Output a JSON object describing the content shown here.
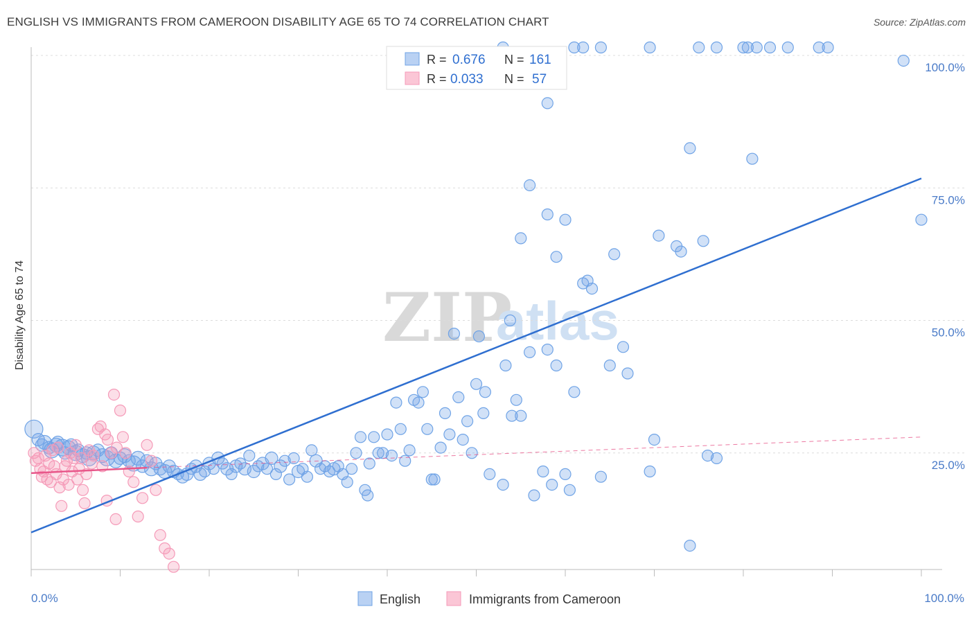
{
  "header": {
    "title": "ENGLISH VS IMMIGRANTS FROM CAMEROON DISABILITY AGE 65 TO 74 CORRELATION CHART",
    "source": "Source: ZipAtlas.com"
  },
  "watermark": {
    "zip": "ZIP",
    "atlas": "atlas"
  },
  "chart_data": {
    "type": "scatter",
    "ylabel": "Disability Age 65 to 74",
    "x_ticks": {
      "min_label": "0.0%",
      "max_label": "100.0%"
    },
    "y_ticks": [
      "100.0%",
      "75.0%",
      "50.0%",
      "25.0%"
    ],
    "xlim": [
      0,
      100
    ],
    "ylim": [
      0,
      103
    ],
    "grid": "horizontal-dashed",
    "legend_position": "top-center",
    "colors": {
      "english": "#6fa3e6",
      "english_line": "#2f6fd0",
      "cameroon": "#f59ab8",
      "cameroon_line": "#e8578a"
    },
    "stats": [
      {
        "r_label": "R =",
        "r": "0.676",
        "n_label": "N =",
        "n": "161"
      },
      {
        "r_label": "R =",
        "r": "0.033",
        "n_label": "N =",
        "n": "57"
      }
    ],
    "series": [
      {
        "name": "English",
        "trend": {
          "x": [
            0,
            100
          ],
          "y": [
            10.0,
            76.8
          ]
        },
        "points": [
          [
            0.3,
            29.5,
            13
          ],
          [
            0.8,
            27.5,
            9
          ],
          [
            1.2,
            26.5,
            9
          ],
          [
            1.5,
            27.0,
            10
          ],
          [
            2.0,
            26.0,
            9
          ],
          [
            2.3,
            25.5,
            11
          ],
          [
            2.8,
            26.5,
            10
          ],
          [
            3.0,
            27.0,
            9
          ],
          [
            3.5,
            26.0,
            12
          ],
          [
            3.8,
            25.0,
            9
          ],
          [
            4.2,
            26.0,
            10
          ],
          [
            4.5,
            26.5,
            9
          ],
          [
            5.0,
            25.0,
            11
          ],
          [
            5.3,
            25.5,
            9
          ],
          [
            5.8,
            24.5,
            10
          ],
          [
            6.2,
            25.0,
            9
          ],
          [
            6.5,
            24.0,
            11
          ],
          [
            7.0,
            25.0,
            10
          ],
          [
            7.5,
            25.5,
            9
          ],
          [
            8.0,
            24.5,
            10
          ],
          [
            8.5,
            24.0,
            11
          ],
          [
            9.0,
            25.0,
            9
          ],
          [
            9.5,
            23.5,
            10
          ],
          [
            10.0,
            24.0,
            9
          ],
          [
            10.5,
            24.5,
            10
          ],
          [
            11.0,
            23.5,
            9
          ],
          [
            11.5,
            23.0,
            11
          ],
          [
            12.0,
            24.0,
            10
          ],
          [
            12.5,
            22.5,
            9
          ],
          [
            13.0,
            23.5,
            9
          ],
          [
            13.5,
            22.0,
            10
          ],
          [
            14.0,
            23.0,
            9
          ],
          [
            14.5,
            22.0,
            9
          ],
          [
            15.0,
            21.5,
            10
          ],
          [
            15.5,
            22.5,
            9
          ],
          [
            16.0,
            21.5,
            9
          ],
          [
            16.5,
            21.0,
            8
          ],
          [
            17.0,
            20.5,
            9
          ],
          [
            17.5,
            21.0,
            9
          ],
          [
            18.0,
            22.0,
            8
          ],
          [
            18.5,
            22.5,
            9
          ],
          [
            19.0,
            21.0,
            9
          ],
          [
            19.5,
            21.5,
            8
          ],
          [
            20.0,
            23.0,
            9
          ],
          [
            20.5,
            22.0,
            8
          ],
          [
            21.0,
            24.0,
            9
          ],
          [
            21.5,
            23.0,
            8
          ],
          [
            22.0,
            22.0,
            9
          ],
          [
            22.5,
            21.0,
            8
          ],
          [
            23.0,
            22.5,
            9
          ],
          [
            23.5,
            23.0,
            8
          ],
          [
            24.0,
            22.0,
            9
          ],
          [
            24.5,
            24.5,
            8
          ],
          [
            25.0,
            21.5,
            9
          ],
          [
            25.5,
            22.5,
            8
          ],
          [
            26.0,
            23.0,
            9
          ],
          [
            26.5,
            22.0,
            8
          ],
          [
            27.0,
            24.0,
            9
          ],
          [
            27.5,
            21.0,
            8
          ],
          [
            28.0,
            22.5,
            9
          ],
          [
            28.5,
            23.5,
            8
          ],
          [
            29.0,
            20.0,
            8
          ],
          [
            29.5,
            24.0,
            8
          ],
          [
            30.0,
            21.5,
            9
          ],
          [
            30.5,
            22.0,
            8
          ],
          [
            31.0,
            20.5,
            8
          ],
          [
            31.5,
            25.5,
            8
          ],
          [
            32.0,
            23.5,
            9
          ],
          [
            32.5,
            22.0,
            8
          ],
          [
            33.0,
            22.5,
            8
          ],
          [
            33.5,
            21.5,
            8
          ],
          [
            34.0,
            22.0,
            9
          ],
          [
            34.5,
            22.5,
            8
          ],
          [
            35.0,
            21.0,
            8
          ],
          [
            35.5,
            19.5,
            8
          ],
          [
            36.0,
            22.0,
            8
          ],
          [
            36.5,
            25.0,
            8
          ],
          [
            37.0,
            28.0,
            8
          ],
          [
            37.5,
            18.0,
            8
          ],
          [
            37.8,
            17.0,
            8
          ],
          [
            38.0,
            23.0,
            8
          ],
          [
            38.5,
            28.0,
            8
          ],
          [
            39.0,
            25.0,
            8
          ],
          [
            39.5,
            25.0,
            8
          ],
          [
            40.0,
            28.5,
            8
          ],
          [
            40.5,
            24.5,
            8
          ],
          [
            41.0,
            34.5,
            8
          ],
          [
            41.5,
            29.5,
            8
          ],
          [
            42.0,
            23.5,
            8
          ],
          [
            42.5,
            25.5,
            8
          ],
          [
            43.0,
            35.0,
            8
          ],
          [
            43.5,
            34.5,
            8
          ],
          [
            44.0,
            36.5,
            8
          ],
          [
            44.5,
            29.5,
            8
          ],
          [
            45.0,
            20.0,
            8
          ],
          [
            45.3,
            20.0,
            8
          ],
          [
            46.0,
            26.0,
            8
          ],
          [
            46.5,
            32.5,
            8
          ],
          [
            47.0,
            28.5,
            8
          ],
          [
            47.5,
            47.5,
            8
          ],
          [
            48.0,
            35.5,
            8
          ],
          [
            48.5,
            27.5,
            8
          ],
          [
            49.0,
            31.0,
            8
          ],
          [
            49.5,
            25.0,
            8
          ],
          [
            50.0,
            38.0,
            8
          ],
          [
            50.3,
            47.0,
            8
          ],
          [
            50.8,
            32.5,
            8
          ],
          [
            51.0,
            36.5,
            8
          ],
          [
            51.5,
            21.0,
            8
          ],
          [
            53.0,
            19.0,
            8
          ],
          [
            53.3,
            41.5,
            8
          ],
          [
            53.8,
            50.0,
            8
          ],
          [
            54.0,
            32.0,
            8
          ],
          [
            54.5,
            35.0,
            8
          ],
          [
            55.0,
            32.0,
            8
          ],
          [
            56.0,
            44.0,
            8
          ],
          [
            56.5,
            17.0,
            8
          ],
          [
            57.5,
            21.5,
            8
          ],
          [
            58.0,
            44.5,
            8
          ],
          [
            58.5,
            19.0,
            8
          ],
          [
            59.0,
            41.5,
            8
          ],
          [
            60.0,
            21.0,
            8
          ],
          [
            60.5,
            18.0,
            8
          ],
          [
            61.0,
            36.5,
            8
          ],
          [
            62.0,
            57.0,
            8
          ],
          [
            62.5,
            57.5,
            8
          ],
          [
            63.0,
            56.0,
            8
          ],
          [
            64.0,
            20.5,
            8
          ],
          [
            65.0,
            41.5,
            8
          ],
          [
            65.5,
            62.5,
            8
          ],
          [
            66.5,
            45.0,
            8
          ],
          [
            67.0,
            40.0,
            8
          ],
          [
            69.5,
            21.5,
            8
          ],
          [
            70.0,
            27.5,
            8
          ],
          [
            70.5,
            66.0,
            8
          ],
          [
            72.5,
            64.0,
            8
          ],
          [
            73.0,
            63.0,
            8
          ],
          [
            75.5,
            65.0,
            8
          ],
          [
            76.0,
            24.5,
            8
          ],
          [
            77.0,
            24.0,
            8
          ],
          [
            74.0,
            7.5,
            8
          ],
          [
            55.0,
            65.5,
            8
          ],
          [
            58.0,
            70.0,
            8
          ],
          [
            58.0,
            91.0,
            8
          ],
          [
            60.0,
            69.0,
            8
          ],
          [
            56.0,
            75.5,
            8
          ],
          [
            59.0,
            62.0,
            8
          ],
          [
            74.0,
            82.5,
            8
          ],
          [
            81.0,
            80.5,
            8
          ],
          [
            98.0,
            99.0,
            8
          ],
          [
            100.0,
            69.0,
            8
          ],
          [
            53.0,
            101.5,
            8
          ],
          [
            61.0,
            101.5,
            8
          ],
          [
            62.0,
            101.5,
            8
          ],
          [
            64.0,
            101.5,
            8
          ],
          [
            69.5,
            101.5,
            8
          ],
          [
            75.0,
            101.5,
            8
          ],
          [
            80.0,
            101.5,
            8
          ],
          [
            80.5,
            101.5,
            8
          ],
          [
            83.0,
            101.5,
            8
          ],
          [
            85.0,
            101.5,
            8
          ],
          [
            88.5,
            101.5,
            8
          ],
          [
            89.5,
            101.5,
            8
          ],
          [
            77.0,
            101.5,
            8
          ],
          [
            81.5,
            101.5,
            8
          ]
        ]
      },
      {
        "name": "Immigrants from Cameroon",
        "trend": {
          "x": [
            0,
            13
          ],
          "y": [
            21.2,
            22.2
          ]
        },
        "trend_extension": {
          "x": [
            13,
            100
          ],
          "y": [
            22.2,
            28.0
          ]
        },
        "points": [
          [
            0.3,
            25.0,
            8
          ],
          [
            0.5,
            23.5,
            8
          ],
          [
            0.8,
            24.0,
            8
          ],
          [
            1.0,
            22.0,
            8
          ],
          [
            1.2,
            20.5,
            8
          ],
          [
            1.4,
            21.5,
            8
          ],
          [
            1.6,
            24.5,
            8
          ],
          [
            1.8,
            20.0,
            8
          ],
          [
            2.0,
            23.0,
            8
          ],
          [
            2.2,
            19.5,
            8
          ],
          [
            2.4,
            25.5,
            8
          ],
          [
            2.6,
            22.5,
            8
          ],
          [
            2.8,
            21.0,
            8
          ],
          [
            3.0,
            26.0,
            8
          ],
          [
            3.2,
            18.5,
            8
          ],
          [
            3.4,
            15.0,
            8
          ],
          [
            3.6,
            20.0,
            8
          ],
          [
            3.8,
            22.5,
            8
          ],
          [
            4.0,
            23.5,
            8
          ],
          [
            4.2,
            19.0,
            8
          ],
          [
            4.4,
            25.0,
            8
          ],
          [
            4.6,
            21.5,
            8
          ],
          [
            4.8,
            24.0,
            8
          ],
          [
            5.0,
            26.5,
            8
          ],
          [
            5.2,
            20.0,
            8
          ],
          [
            5.4,
            22.0,
            8
          ],
          [
            5.6,
            24.0,
            8
          ],
          [
            5.8,
            18.0,
            8
          ],
          [
            6.0,
            15.5,
            8
          ],
          [
            6.2,
            21.0,
            8
          ],
          [
            6.5,
            25.5,
            8
          ],
          [
            6.8,
            23.0,
            8
          ],
          [
            7.0,
            24.5,
            8
          ],
          [
            7.5,
            29.5,
            8
          ],
          [
            7.8,
            30.0,
            8
          ],
          [
            8.0,
            22.5,
            8
          ],
          [
            8.3,
            28.5,
            8
          ],
          [
            8.6,
            27.5,
            8
          ],
          [
            9.0,
            25.0,
            8
          ],
          [
            9.3,
            36.0,
            8
          ],
          [
            9.6,
            26.0,
            8
          ],
          [
            10.0,
            33.0,
            8
          ],
          [
            10.3,
            28.0,
            8
          ],
          [
            10.6,
            25.0,
            8
          ],
          [
            11.0,
            21.5,
            8
          ],
          [
            11.5,
            19.5,
            8
          ],
          [
            12.0,
            13.0,
            8
          ],
          [
            12.5,
            16.5,
            8
          ],
          [
            13.0,
            26.5,
            8
          ],
          [
            13.5,
            23.5,
            8
          ],
          [
            14.0,
            18.0,
            8
          ],
          [
            14.5,
            9.5,
            8
          ],
          [
            15.0,
            7.0,
            8
          ],
          [
            15.5,
            6.0,
            8
          ],
          [
            16.0,
            3.5,
            8
          ],
          [
            9.5,
            12.5,
            8
          ],
          [
            8.5,
            16.0,
            8
          ]
        ]
      }
    ]
  },
  "legend_bottom": [
    "English",
    "Immigrants from Cameroon"
  ]
}
